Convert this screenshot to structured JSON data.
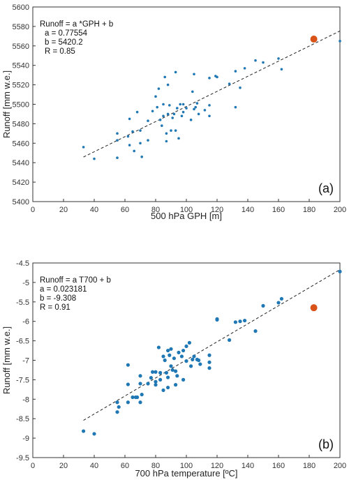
{
  "colors": {
    "points": "#1f77b4",
    "highlight": "#d95319",
    "fit": "#222222",
    "axes": "#333333"
  },
  "chart_data": [
    {
      "type": "scatter",
      "panel_label": "(a)",
      "xlabel": "500 hPa GPH [m]",
      "ylabel": "Runoff [mm w.e.]",
      "xlim": [
        0,
        200
      ],
      "ylim": [
        5400,
        5600
      ],
      "xticks": [
        0,
        20,
        40,
        60,
        80,
        100,
        120,
        140,
        160,
        180,
        200
      ],
      "yticks": [
        5400,
        5420,
        5440,
        5460,
        5480,
        5500,
        5520,
        5540,
        5560,
        5580,
        5600
      ],
      "x_tick_labels": [
        "0",
        "20",
        "40",
        "60",
        "80",
        "100",
        "120",
        "140",
        "160",
        "180",
        "200"
      ],
      "y_tick_labels": [
        "5400",
        "5420",
        "5440",
        "5460",
        "5480",
        "5500",
        "5520",
        "5540",
        "5560",
        "5580",
        "5600"
      ],
      "grid": false,
      "annotation": [
        "Runoff  = a *GPH + b",
        "a = 0.77554",
        "b = 5420.2",
        "R = 0.85"
      ],
      "fit": {
        "slope": 0.77554,
        "intercept": 5420.2,
        "x_range": [
          33,
          200
        ]
      },
      "highlight": {
        "x": 183,
        "y": 5567
      },
      "points": [
        {
          "x": 33,
          "y": 5456
        },
        {
          "x": 40,
          "y": 5444
        },
        {
          "x": 55,
          "y": 5470
        },
        {
          "x": 55,
          "y": 5463
        },
        {
          "x": 55,
          "y": 5445
        },
        {
          "x": 62,
          "y": 5467
        },
        {
          "x": 63,
          "y": 5458
        },
        {
          "x": 63,
          "y": 5485
        },
        {
          "x": 65,
          "y": 5472
        },
        {
          "x": 66,
          "y": 5452
        },
        {
          "x": 68,
          "y": 5492
        },
        {
          "x": 70,
          "y": 5460
        },
        {
          "x": 70,
          "y": 5473
        },
        {
          "x": 71,
          "y": 5446
        },
        {
          "x": 75,
          "y": 5463
        },
        {
          "x": 75,
          "y": 5483
        },
        {
          "x": 78,
          "y": 5493
        },
        {
          "x": 80,
          "y": 5508
        },
        {
          "x": 81,
          "y": 5497
        },
        {
          "x": 82,
          "y": 5516
        },
        {
          "x": 83,
          "y": 5484
        },
        {
          "x": 84,
          "y": 5478
        },
        {
          "x": 85,
          "y": 5488
        },
        {
          "x": 85,
          "y": 5500
        },
        {
          "x": 86,
          "y": 5528
        },
        {
          "x": 87,
          "y": 5470
        },
        {
          "x": 87,
          "y": 5462
        },
        {
          "x": 88,
          "y": 5520
        },
        {
          "x": 88,
          "y": 5490
        },
        {
          "x": 89,
          "y": 5499
        },
        {
          "x": 90,
          "y": 5473
        },
        {
          "x": 91,
          "y": 5486
        },
        {
          "x": 92,
          "y": 5490
        },
        {
          "x": 93,
          "y": 5473
        },
        {
          "x": 93,
          "y": 5533
        },
        {
          "x": 94,
          "y": 5496
        },
        {
          "x": 95,
          "y": 5465
        },
        {
          "x": 96,
          "y": 5500
        },
        {
          "x": 97,
          "y": 5488
        },
        {
          "x": 98,
          "y": 5500
        },
        {
          "x": 98,
          "y": 5492
        },
        {
          "x": 100,
          "y": 5496
        },
        {
          "x": 103,
          "y": 5484
        },
        {
          "x": 104,
          "y": 5513
        },
        {
          "x": 105,
          "y": 5531
        },
        {
          "x": 105,
          "y": 5495
        },
        {
          "x": 106,
          "y": 5497
        },
        {
          "x": 107,
          "y": 5501
        },
        {
          "x": 108,
          "y": 5490
        },
        {
          "x": 112,
          "y": 5494
        },
        {
          "x": 115,
          "y": 5527
        },
        {
          "x": 115,
          "y": 5488
        },
        {
          "x": 115,
          "y": 5499
        },
        {
          "x": 119,
          "y": 5529
        },
        {
          "x": 120,
          "y": 5528
        },
        {
          "x": 128,
          "y": 5521
        },
        {
          "x": 132,
          "y": 5534
        },
        {
          "x": 132,
          "y": 5497
        },
        {
          "x": 135,
          "y": 5517
        },
        {
          "x": 138,
          "y": 5537
        },
        {
          "x": 145,
          "y": 5545
        },
        {
          "x": 150,
          "y": 5543
        },
        {
          "x": 160,
          "y": 5547
        },
        {
          "x": 162,
          "y": 5536
        },
        {
          "x": 200,
          "y": 5565
        }
      ]
    },
    {
      "type": "scatter",
      "panel_label": "(b)",
      "xlabel": "700 hPa temperature [ºC]",
      "ylabel": "Runoff [mm w.e.]",
      "xlim": [
        0,
        200
      ],
      "ylim": [
        -9.5,
        -4.5
      ],
      "xticks": [
        0,
        20,
        40,
        60,
        80,
        100,
        120,
        140,
        160,
        180,
        200
      ],
      "yticks": [
        -9.5,
        -9,
        -8.5,
        -8,
        -7.5,
        -7,
        -6.5,
        -6,
        -5.5,
        -5,
        -4.5
      ],
      "x_tick_labels": [
        "0",
        "20",
        "40",
        "60",
        "80",
        "100",
        "120",
        "140",
        "160",
        "180",
        "200"
      ],
      "y_tick_labels": [
        "-9.5",
        "-9",
        "-8.5",
        "-8",
        "-7.5",
        "-7",
        "-6.5",
        "-6",
        "-5.5",
        "-5",
        "-4.5"
      ],
      "grid": false,
      "annotation": [
        "Runoff  = a T700 + b",
        "a = 0.023181",
        "b = -9.308",
        "R = 0.91"
      ],
      "fit": {
        "slope": 0.023181,
        "intercept": -9.308,
        "x_range": [
          33,
          200
        ]
      },
      "highlight": {
        "x": 183,
        "y": -5.65
      },
      "points": [
        {
          "x": 33,
          "y": -8.82
        },
        {
          "x": 40,
          "y": -8.89
        },
        {
          "x": 55,
          "y": -8.08
        },
        {
          "x": 56,
          "y": -8.2
        },
        {
          "x": 55,
          "y": -8.33
        },
        {
          "x": 62,
          "y": -7.12
        },
        {
          "x": 62,
          "y": -7.62
        },
        {
          "x": 62,
          "y": -8.08
        },
        {
          "x": 65,
          "y": -7.95
        },
        {
          "x": 67,
          "y": -7.95
        },
        {
          "x": 68,
          "y": -7.95
        },
        {
          "x": 70,
          "y": -7.4
        },
        {
          "x": 70,
          "y": -7.6
        },
        {
          "x": 70,
          "y": -8.08
        },
        {
          "x": 71,
          "y": -7.88
        },
        {
          "x": 75,
          "y": -7.6
        },
        {
          "x": 77,
          "y": -7.45
        },
        {
          "x": 78,
          "y": -7.3
        },
        {
          "x": 80,
          "y": -7.3
        },
        {
          "x": 80,
          "y": -7.55
        },
        {
          "x": 80,
          "y": -7.63
        },
        {
          "x": 82,
          "y": -6.67
        },
        {
          "x": 83,
          "y": -7.5
        },
        {
          "x": 83,
          "y": -7.32
        },
        {
          "x": 85,
          "y": -7.77
        },
        {
          "x": 85,
          "y": -6.9
        },
        {
          "x": 86,
          "y": -7.0
        },
        {
          "x": 87,
          "y": -7.32
        },
        {
          "x": 88,
          "y": -6.75
        },
        {
          "x": 88,
          "y": -7.44
        },
        {
          "x": 88,
          "y": -7.7
        },
        {
          "x": 89,
          "y": -6.87
        },
        {
          "x": 90,
          "y": -6.71
        },
        {
          "x": 90,
          "y": -7.15
        },
        {
          "x": 91,
          "y": -7.25
        },
        {
          "x": 92,
          "y": -6.95
        },
        {
          "x": 93,
          "y": -7.63
        },
        {
          "x": 93,
          "y": -7.28
        },
        {
          "x": 94,
          "y": -7.4
        },
        {
          "x": 95,
          "y": -6.8
        },
        {
          "x": 97,
          "y": -6.9
        },
        {
          "x": 98,
          "y": -7.5
        },
        {
          "x": 98,
          "y": -6.75
        },
        {
          "x": 100,
          "y": -7.02
        },
        {
          "x": 100,
          "y": -6.64
        },
        {
          "x": 102,
          "y": -6.55
        },
        {
          "x": 103,
          "y": -7.15
        },
        {
          "x": 104,
          "y": -6.98
        },
        {
          "x": 105,
          "y": -6.9
        },
        {
          "x": 107,
          "y": -6.98
        },
        {
          "x": 108,
          "y": -7.0
        },
        {
          "x": 109,
          "y": -7.1
        },
        {
          "x": 115,
          "y": -6.87
        },
        {
          "x": 115,
          "y": -7.05
        },
        {
          "x": 115,
          "y": -7.2
        },
        {
          "x": 120,
          "y": -5.96
        },
        {
          "x": 120,
          "y": -5.94
        },
        {
          "x": 128,
          "y": -6.48
        },
        {
          "x": 132,
          "y": -6.02
        },
        {
          "x": 135,
          "y": -6.0
        },
        {
          "x": 138,
          "y": -5.98
        },
        {
          "x": 145,
          "y": -6.25
        },
        {
          "x": 150,
          "y": -5.6
        },
        {
          "x": 160,
          "y": -5.52
        },
        {
          "x": 162,
          "y": -5.42
        },
        {
          "x": 200,
          "y": -4.72
        }
      ]
    }
  ]
}
